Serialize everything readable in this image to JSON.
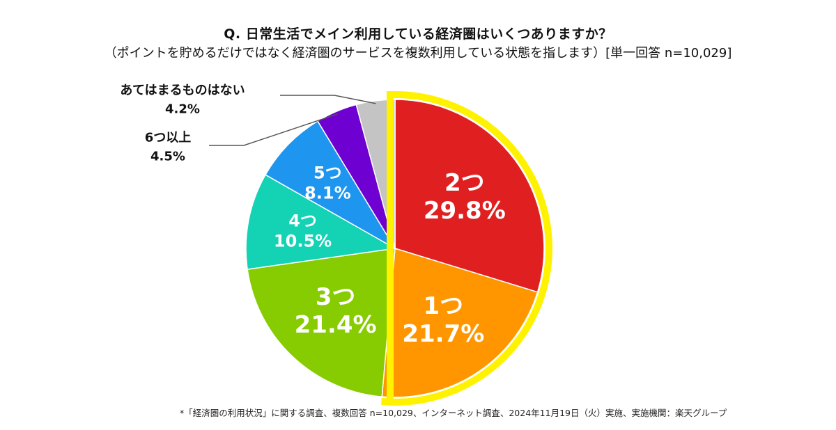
{
  "header": {
    "question": "Q. 日常生活でメイン利用している経済圏はいくつありますか？",
    "subtitle": "（ポイントを貯めるだけではなく経済圏のサービスを複数利用している状態を指します）[単一回答 n=10,029]"
  },
  "footnote": "*「経済圏の利用状況」に関する調査、複数回答 n=10,029、インターネット調査、2024年11月19日（火）実施、実施機関：楽天グループ",
  "chart_data": {
    "type": "pie",
    "unit": "%",
    "start": "12 o'clock",
    "direction": "clockwise",
    "highlight": [
      "2つ",
      "1つ"
    ],
    "highlight_color": "#FFF200",
    "slices": [
      {
        "label": "2つ",
        "value": 29.8,
        "display": "29.8%",
        "color": "#E02020",
        "label_color": "#ffffff",
        "label_position": "inside"
      },
      {
        "label": "1つ",
        "value": 21.7,
        "display": "21.7%",
        "color": "#FF9600",
        "label_color": "#ffffff",
        "label_position": "inside"
      },
      {
        "label": "3つ",
        "value": 21.4,
        "display": "21.4%",
        "color": "#86CC00",
        "label_color": "#ffffff",
        "label_position": "inside"
      },
      {
        "label": "4つ",
        "value": 10.5,
        "display": "10.5%",
        "color": "#14D2B4",
        "label_color": "#ffffff",
        "label_position": "inside"
      },
      {
        "label": "5つ",
        "value": 8.1,
        "display": "8.1%",
        "color": "#1E96F0",
        "label_color": "#ffffff",
        "label_position": "inside"
      },
      {
        "label": "6つ以上",
        "value": 4.5,
        "display": "4.5%",
        "color": "#6E00D2",
        "label_color": "#111111",
        "label_position": "outside"
      },
      {
        "label": "あてはまるものはない",
        "value": 4.2,
        "display": "4.2%",
        "color": "#C4C4C4",
        "label_color": "#111111",
        "label_position": "outside"
      }
    ]
  }
}
